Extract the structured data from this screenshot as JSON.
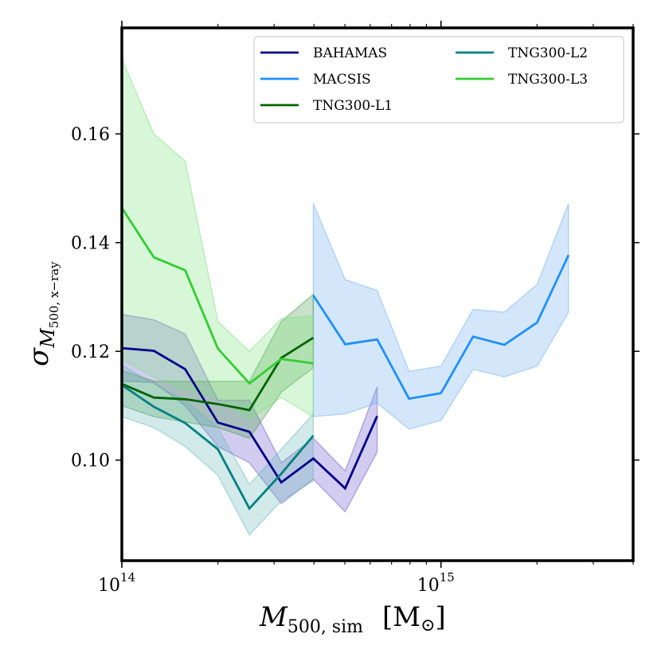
{
  "chart_data": {
    "type": "line",
    "xscale": "log",
    "xlim": [
      100000000000000.0,
      4000000000000000.0
    ],
    "ylim": [
      0.0815,
      0.1795
    ],
    "xlabel": {
      "main": "M",
      "sub": "500, sim",
      "unit_open": "[M",
      "unit_symbol": "⊙",
      "unit_close": "]"
    },
    "ylabel": {
      "main": "σ",
      "sub_main": "M",
      "sub_sub": "500, x−ray"
    },
    "x_ticks_major": [
      {
        "value": 100000000000000.0,
        "base": "10",
        "exp": "14"
      },
      {
        "value": 1000000000000000.0,
        "base": "10",
        "exp": "15"
      }
    ],
    "y_ticks": [
      {
        "value": 0.1,
        "label": "0.10"
      },
      {
        "value": 0.12,
        "label": "0.12"
      },
      {
        "value": 0.14,
        "label": "0.14"
      },
      {
        "value": 0.16,
        "label": "0.16"
      }
    ],
    "legend_position": "top-right",
    "series": [
      {
        "name": "BAHAMAS",
        "color": "#00008b",
        "fill": "#6a5acd",
        "x": [
          100000000000000.0,
          126000000000000.0,
          158000000000000.0,
          200000000000000.0,
          251000000000000.0,
          316000000000000.0,
          398000000000000.0,
          501000000000000.0,
          631000000000000.0
        ],
        "y": [
          0.1206,
          0.1201,
          0.1167,
          0.1069,
          0.1052,
          0.0959,
          0.1003,
          0.0948,
          0.1081
        ],
        "lo": [
          0.1145,
          0.1143,
          0.11,
          0.1025,
          0.0995,
          0.092,
          0.0965,
          0.0905,
          0.1015
        ],
        "hi": [
          0.1268,
          0.1258,
          0.1232,
          0.111,
          0.111,
          0.0995,
          0.104,
          0.098,
          0.1135
        ]
      },
      {
        "name": "MACSIS",
        "color": "#1e90ff",
        "fill": "#70b0f0",
        "x": [
          398000000000000.0,
          501000000000000.0,
          631000000000000.0,
          794000000000000.0,
          1000000000000000.0,
          1260000000000000.0,
          1580000000000000.0,
          2000000000000000.0,
          2510000000000000.0
        ],
        "y": [
          0.1303,
          0.1213,
          0.1222,
          0.1113,
          0.1123,
          0.1227,
          0.1212,
          0.1253,
          0.1377
        ],
        "lo": [
          0.108,
          0.1085,
          0.1105,
          0.1057,
          0.1073,
          0.1167,
          0.1153,
          0.1173,
          0.1272
        ],
        "hi": [
          0.1472,
          0.1332,
          0.1312,
          0.1163,
          0.1173,
          0.1277,
          0.1272,
          0.1323,
          0.1472
        ]
      },
      {
        "name": "TNG300-L1",
        "color": "#006400",
        "fill": "#4a9a4a",
        "x": [
          100000000000000.0,
          126000000000000.0,
          158000000000000.0,
          200000000000000.0,
          251000000000000.0,
          316000000000000.0,
          398000000000000.0
        ],
        "y": [
          0.114,
          0.1115,
          0.1112,
          0.1103,
          0.1092,
          0.1188,
          0.1225
        ],
        "lo": [
          0.11,
          0.108,
          0.107,
          0.106,
          0.104,
          0.1125,
          0.117
        ],
        "hi": [
          0.1165,
          0.1145,
          0.1145,
          0.1145,
          0.1145,
          0.1255,
          0.1305
        ]
      },
      {
        "name": "TNG300-L2",
        "color": "#008080",
        "fill": "#6ab8b8",
        "x": [
          100000000000000.0,
          126000000000000.0,
          158000000000000.0,
          200000000000000.0,
          251000000000000.0,
          316000000000000.0,
          398000000000000.0
        ],
        "y": [
          0.1138,
          0.1098,
          0.1068,
          0.102,
          0.0911,
          0.0975,
          0.1045
        ],
        "lo": [
          0.108,
          0.106,
          0.1025,
          0.0972,
          0.0862,
          0.0925,
          0.0962
        ],
        "hi": [
          0.1175,
          0.114,
          0.111,
          0.106,
          0.0955,
          0.102,
          0.1085
        ]
      },
      {
        "name": "TNG300-L3",
        "color": "#32cd32",
        "fill": "#7ee07e",
        "x": [
          100000000000000.0,
          126000000000000.0,
          158000000000000.0,
          200000000000000.0,
          251000000000000.0,
          316000000000000.0,
          398000000000000.0
        ],
        "y": [
          0.1464,
          0.1373,
          0.1349,
          0.1205,
          0.1141,
          0.1186,
          0.1178
        ],
        "lo": [
          0.1185,
          0.1152,
          0.113,
          0.1115,
          0.1075,
          0.1115,
          0.108
        ],
        "hi": [
          0.1738,
          0.16,
          0.155,
          0.1255,
          0.12,
          0.126,
          0.1265
        ]
      }
    ],
    "legend_order": [
      "BAHAMAS",
      "MACSIS",
      "TNG300-L1",
      "TNG300-L2",
      "TNG300-L3"
    ]
  }
}
